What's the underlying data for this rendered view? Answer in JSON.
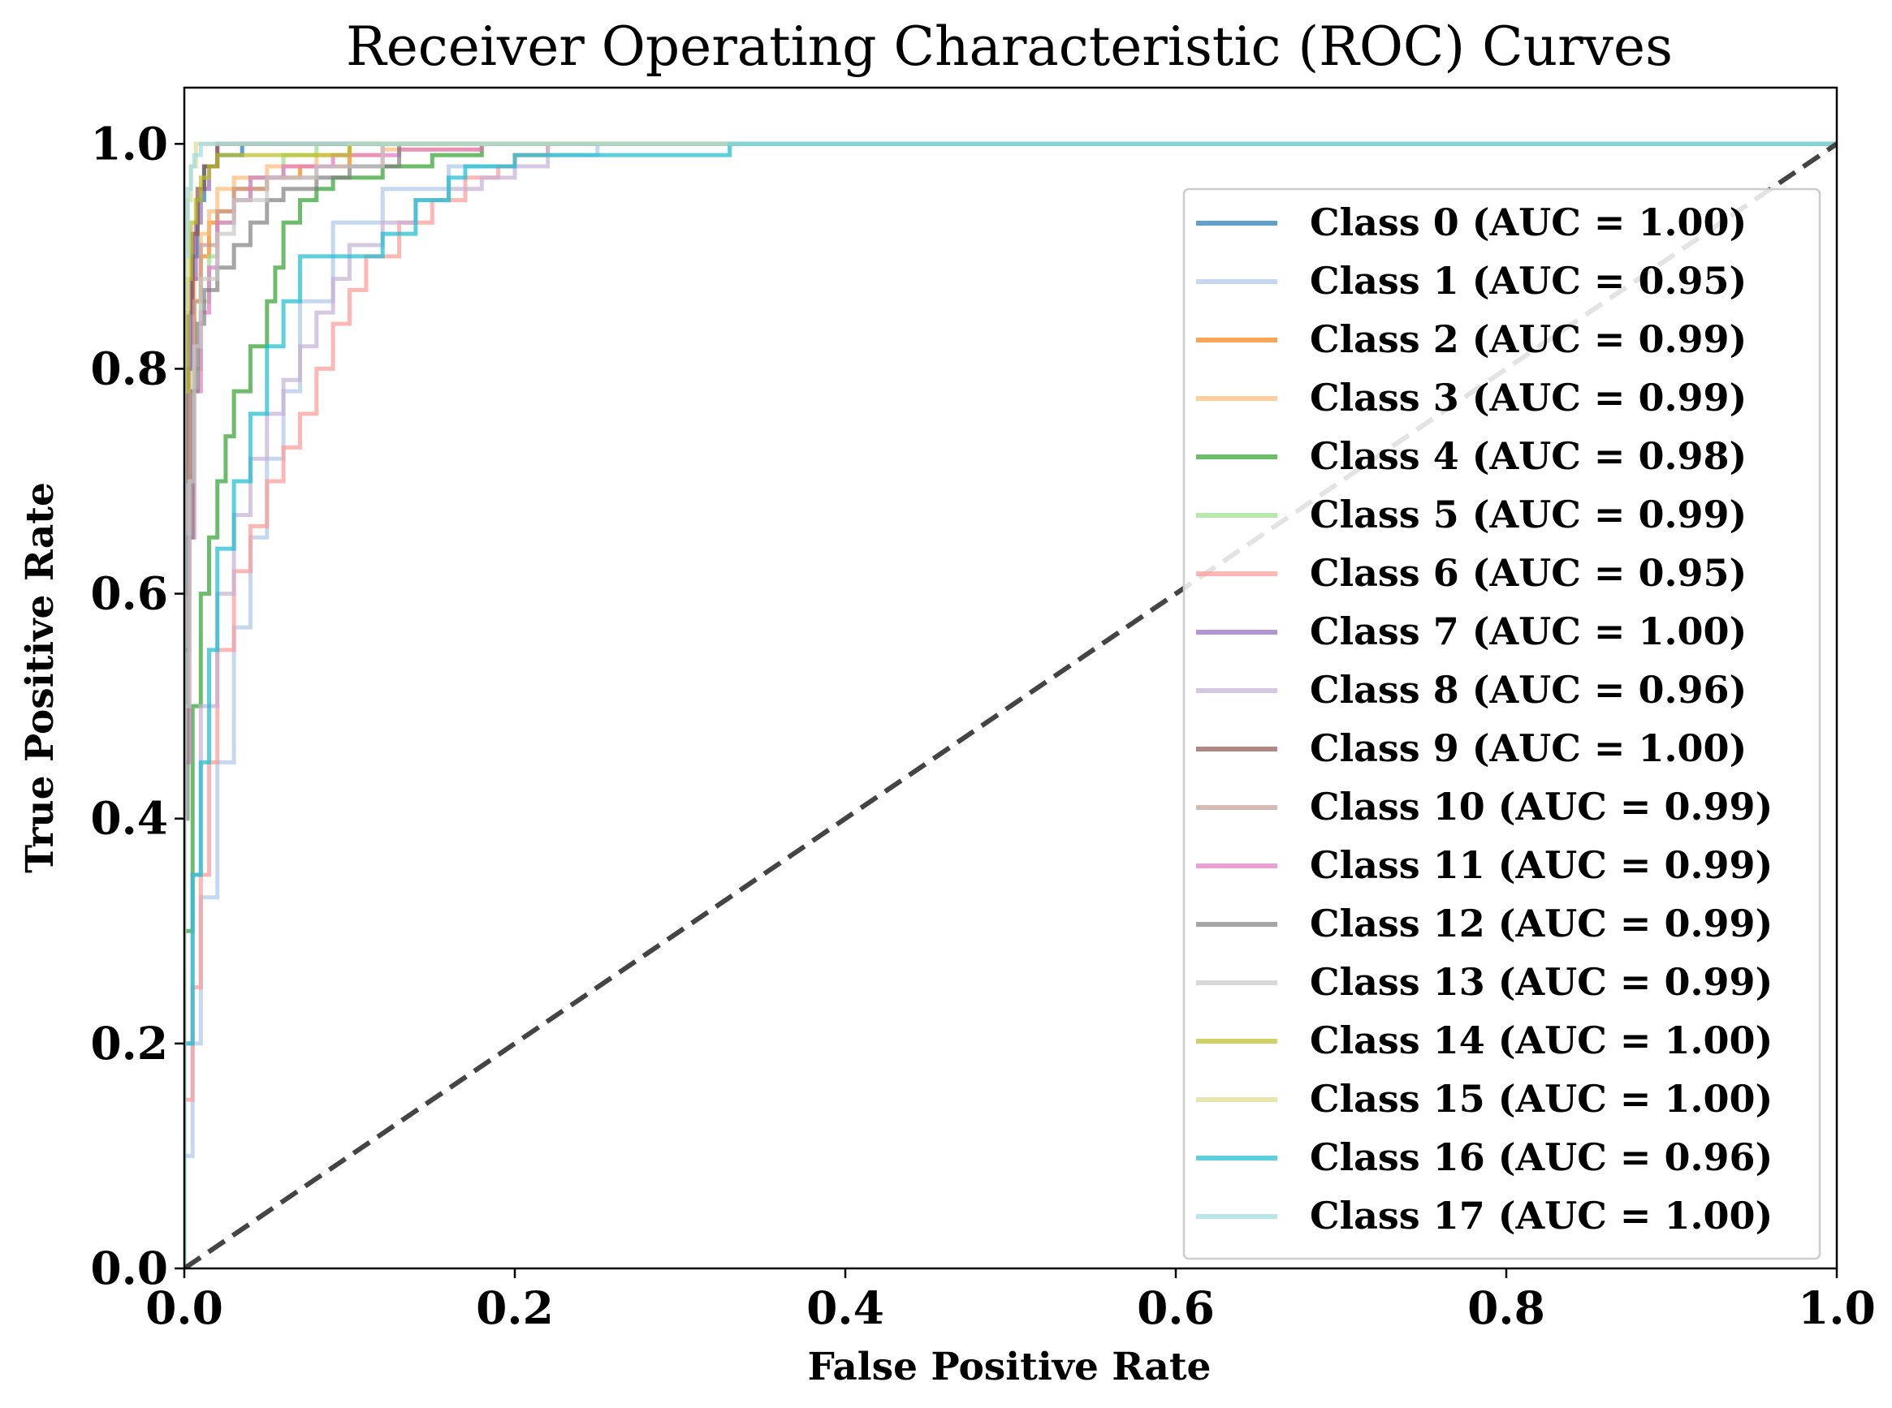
{
  "chart_data": {
    "type": "line",
    "title": "Receiver Operating Characteristic (ROC) Curves",
    "xlabel": "False Positive Rate",
    "ylabel": "True Positive Rate",
    "xlim": [
      0.0,
      1.0
    ],
    "ylim": [
      0.0,
      1.05
    ],
    "xticks": [
      0.0,
      0.2,
      0.4,
      0.6,
      0.8,
      1.0
    ],
    "yticks": [
      0.0,
      0.2,
      0.4,
      0.6,
      0.8,
      1.0
    ],
    "xtick_labels": [
      "0.0",
      "0.2",
      "0.4",
      "0.6",
      "0.8",
      "1.0"
    ],
    "ytick_labels": [
      "0.0",
      "0.2",
      "0.4",
      "0.6",
      "0.8",
      "1.0"
    ],
    "grid": false,
    "legend_position": "right",
    "reference_line": {
      "x": [
        0,
        1
      ],
      "y": [
        0,
        1
      ],
      "style": "dashed",
      "color": "#444444"
    },
    "series": [
      {
        "name": "Class 0 (AUC = 1.00)",
        "color": "#1f77b4",
        "x": [
          0,
          0.003,
          0.005,
          0.008,
          0.012,
          0.02,
          0.035,
          0.05,
          1.0
        ],
        "y": [
          0,
          0.55,
          0.8,
          0.9,
          0.95,
          0.98,
          0.99,
          1.0,
          1.0
        ]
      },
      {
        "name": "Class 1 (AUC = 0.95)",
        "color": "#aec7e8",
        "x": [
          0,
          0.005,
          0.01,
          0.02,
          0.03,
          0.04,
          0.05,
          0.06,
          0.07,
          0.09,
          0.12,
          0.16,
          0.2,
          0.25,
          0.27,
          1.0
        ],
        "y": [
          0,
          0.1,
          0.2,
          0.33,
          0.45,
          0.57,
          0.65,
          0.72,
          0.78,
          0.86,
          0.93,
          0.96,
          0.98,
          0.99,
          1.0,
          1.0
        ]
      },
      {
        "name": "Class 2 (AUC = 0.99)",
        "color": "#ff7f0e",
        "x": [
          0,
          0.003,
          0.006,
          0.01,
          0.015,
          0.02,
          0.03,
          0.05,
          0.07,
          0.1,
          0.13,
          1.0
        ],
        "y": [
          0,
          0.6,
          0.78,
          0.86,
          0.9,
          0.93,
          0.94,
          0.96,
          0.97,
          0.98,
          1.0,
          1.0
        ]
      },
      {
        "name": "Class 3 (AUC = 0.99)",
        "color": "#ffbb78",
        "x": [
          0,
          0.003,
          0.006,
          0.01,
          0.015,
          0.02,
          0.03,
          0.05,
          0.08,
          0.12,
          0.18,
          0.22,
          1.0
        ],
        "y": [
          0,
          0.65,
          0.8,
          0.88,
          0.92,
          0.94,
          0.96,
          0.97,
          0.98,
          0.99,
          0.995,
          1.0,
          1.0
        ]
      },
      {
        "name": "Class 4 (AUC = 0.98)",
        "color": "#2ca02c",
        "x": [
          0,
          0.005,
          0.01,
          0.015,
          0.02,
          0.025,
          0.03,
          0.04,
          0.05,
          0.055,
          0.06,
          0.07,
          0.08,
          0.09,
          0.1,
          0.12,
          0.15,
          0.18,
          0.2,
          1.0
        ],
        "y": [
          0,
          0.3,
          0.5,
          0.6,
          0.65,
          0.7,
          0.74,
          0.78,
          0.82,
          0.86,
          0.89,
          0.93,
          0.95,
          0.96,
          0.97,
          0.97,
          0.98,
          0.99,
          1.0,
          1.0
        ]
      },
      {
        "name": "Class 5 (AUC = 0.99)",
        "color": "#98df8a",
        "x": [
          0,
          0.003,
          0.006,
          0.01,
          0.015,
          0.02,
          0.03,
          0.04,
          0.06,
          0.08,
          0.1,
          1.0
        ],
        "y": [
          0,
          0.5,
          0.7,
          0.8,
          0.86,
          0.9,
          0.93,
          0.95,
          0.97,
          0.99,
          1.0,
          1.0
        ]
      },
      {
        "name": "Class 6 (AUC = 0.95)",
        "color": "#ff9896",
        "x": [
          0,
          0.005,
          0.01,
          0.015,
          0.02,
          0.03,
          0.04,
          0.05,
          0.06,
          0.07,
          0.08,
          0.09,
          0.1,
          0.11,
          0.13,
          0.15,
          0.17,
          0.19,
          0.2,
          0.22,
          1.0
        ],
        "y": [
          0,
          0.15,
          0.25,
          0.35,
          0.45,
          0.55,
          0.62,
          0.66,
          0.7,
          0.73,
          0.76,
          0.8,
          0.84,
          0.87,
          0.9,
          0.93,
          0.95,
          0.97,
          0.98,
          0.99,
          1.0
        ]
      },
      {
        "name": "Class 7 (AUC = 1.00)",
        "color": "#9467bd",
        "x": [
          0,
          0.002,
          0.004,
          0.007,
          0.01,
          0.015,
          0.02,
          0.03,
          1.0
        ],
        "y": [
          0,
          0.6,
          0.8,
          0.88,
          0.93,
          0.96,
          0.98,
          1.0,
          1.0
        ]
      },
      {
        "name": "Class 8 (AUC = 0.96)",
        "color": "#c5b0d5",
        "x": [
          0,
          0.005,
          0.01,
          0.02,
          0.03,
          0.04,
          0.05,
          0.06,
          0.07,
          0.08,
          0.09,
          0.1,
          0.12,
          0.14,
          0.16,
          0.18,
          0.2,
          0.22,
          0.25,
          1.0
        ],
        "y": [
          0,
          0.2,
          0.35,
          0.5,
          0.6,
          0.67,
          0.72,
          0.76,
          0.79,
          0.82,
          0.85,
          0.88,
          0.91,
          0.93,
          0.95,
          0.96,
          0.97,
          0.98,
          1.0,
          1.0
        ]
      },
      {
        "name": "Class 9 (AUC = 1.00)",
        "color": "#8c564b",
        "x": [
          0,
          0.002,
          0.005,
          0.008,
          0.012,
          0.02,
          0.03,
          1.0
        ],
        "y": [
          0,
          0.7,
          0.85,
          0.92,
          0.96,
          0.98,
          1.0,
          1.0
        ]
      },
      {
        "name": "Class 10 (AUC = 0.99)",
        "color": "#c49c94",
        "x": [
          0,
          0.003,
          0.006,
          0.01,
          0.02,
          0.03,
          0.05,
          0.08,
          0.12,
          0.15,
          1.0
        ],
        "y": [
          0,
          0.6,
          0.78,
          0.86,
          0.91,
          0.94,
          0.96,
          0.97,
          0.98,
          1.0,
          1.0
        ]
      },
      {
        "name": "Class 11 (AUC = 0.99)",
        "color": "#e377c2",
        "x": [
          0,
          0.003,
          0.006,
          0.01,
          0.015,
          0.02,
          0.03,
          0.04,
          0.06,
          0.09,
          0.13,
          0.18,
          0.22,
          1.0
        ],
        "y": [
          0,
          0.45,
          0.65,
          0.78,
          0.85,
          0.89,
          0.93,
          0.95,
          0.97,
          0.98,
          0.99,
          0.995,
          1.0,
          1.0
        ]
      },
      {
        "name": "Class 12 (AUC = 0.99)",
        "color": "#7f7f7f",
        "x": [
          0,
          0.002,
          0.005,
          0.008,
          0.012,
          0.02,
          0.03,
          0.04,
          0.05,
          0.06,
          0.08,
          0.1,
          0.13,
          0.16,
          1.0
        ],
        "y": [
          0,
          0.4,
          0.65,
          0.78,
          0.84,
          0.87,
          0.89,
          0.91,
          0.93,
          0.95,
          0.96,
          0.97,
          0.98,
          1.0,
          1.0
        ]
      },
      {
        "name": "Class 13 (AUC = 0.99)",
        "color": "#c7c7c7",
        "x": [
          0,
          0.003,
          0.006,
          0.01,
          0.02,
          0.03,
          0.05,
          0.08,
          0.12,
          0.17,
          1.0
        ],
        "y": [
          0,
          0.5,
          0.7,
          0.82,
          0.88,
          0.92,
          0.95,
          0.97,
          0.98,
          1.0,
          1.0
        ]
      },
      {
        "name": "Class 14 (AUC = 1.00)",
        "color": "#bcbd22",
        "x": [
          0,
          0.002,
          0.004,
          0.007,
          0.01,
          0.015,
          0.02,
          0.03,
          0.1,
          0.13,
          1.0
        ],
        "y": [
          0,
          0.78,
          0.88,
          0.93,
          0.95,
          0.97,
          0.98,
          0.99,
          0.99,
          1.0,
          1.0
        ]
      },
      {
        "name": "Class 15 (AUC = 1.00)",
        "color": "#dbdb8d",
        "x": [
          0,
          0.002,
          0.004,
          0.007,
          0.01,
          1.0
        ],
        "y": [
          0,
          0.85,
          0.95,
          0.98,
          1.0,
          1.0
        ]
      },
      {
        "name": "Class 16 (AUC = 0.96)",
        "color": "#17becf",
        "x": [
          0,
          0.005,
          0.01,
          0.015,
          0.02,
          0.03,
          0.04,
          0.05,
          0.06,
          0.07,
          0.08,
          0.1,
          0.12,
          0.14,
          0.16,
          0.17,
          0.2,
          0.25,
          0.33,
          0.37,
          1.0
        ],
        "y": [
          0,
          0.2,
          0.35,
          0.45,
          0.55,
          0.64,
          0.7,
          0.76,
          0.82,
          0.86,
          0.9,
          0.9,
          0.9,
          0.92,
          0.95,
          0.97,
          0.98,
          0.99,
          0.99,
          1.0,
          1.0
        ]
      },
      {
        "name": "Class 17 (AUC = 1.00)",
        "color": "#9edae5",
        "x": [
          0,
          0.002,
          0.004,
          0.006,
          0.01,
          0.015,
          1.0
        ],
        "y": [
          0,
          0.9,
          0.96,
          0.98,
          0.99,
          1.0,
          1.0
        ]
      }
    ]
  }
}
